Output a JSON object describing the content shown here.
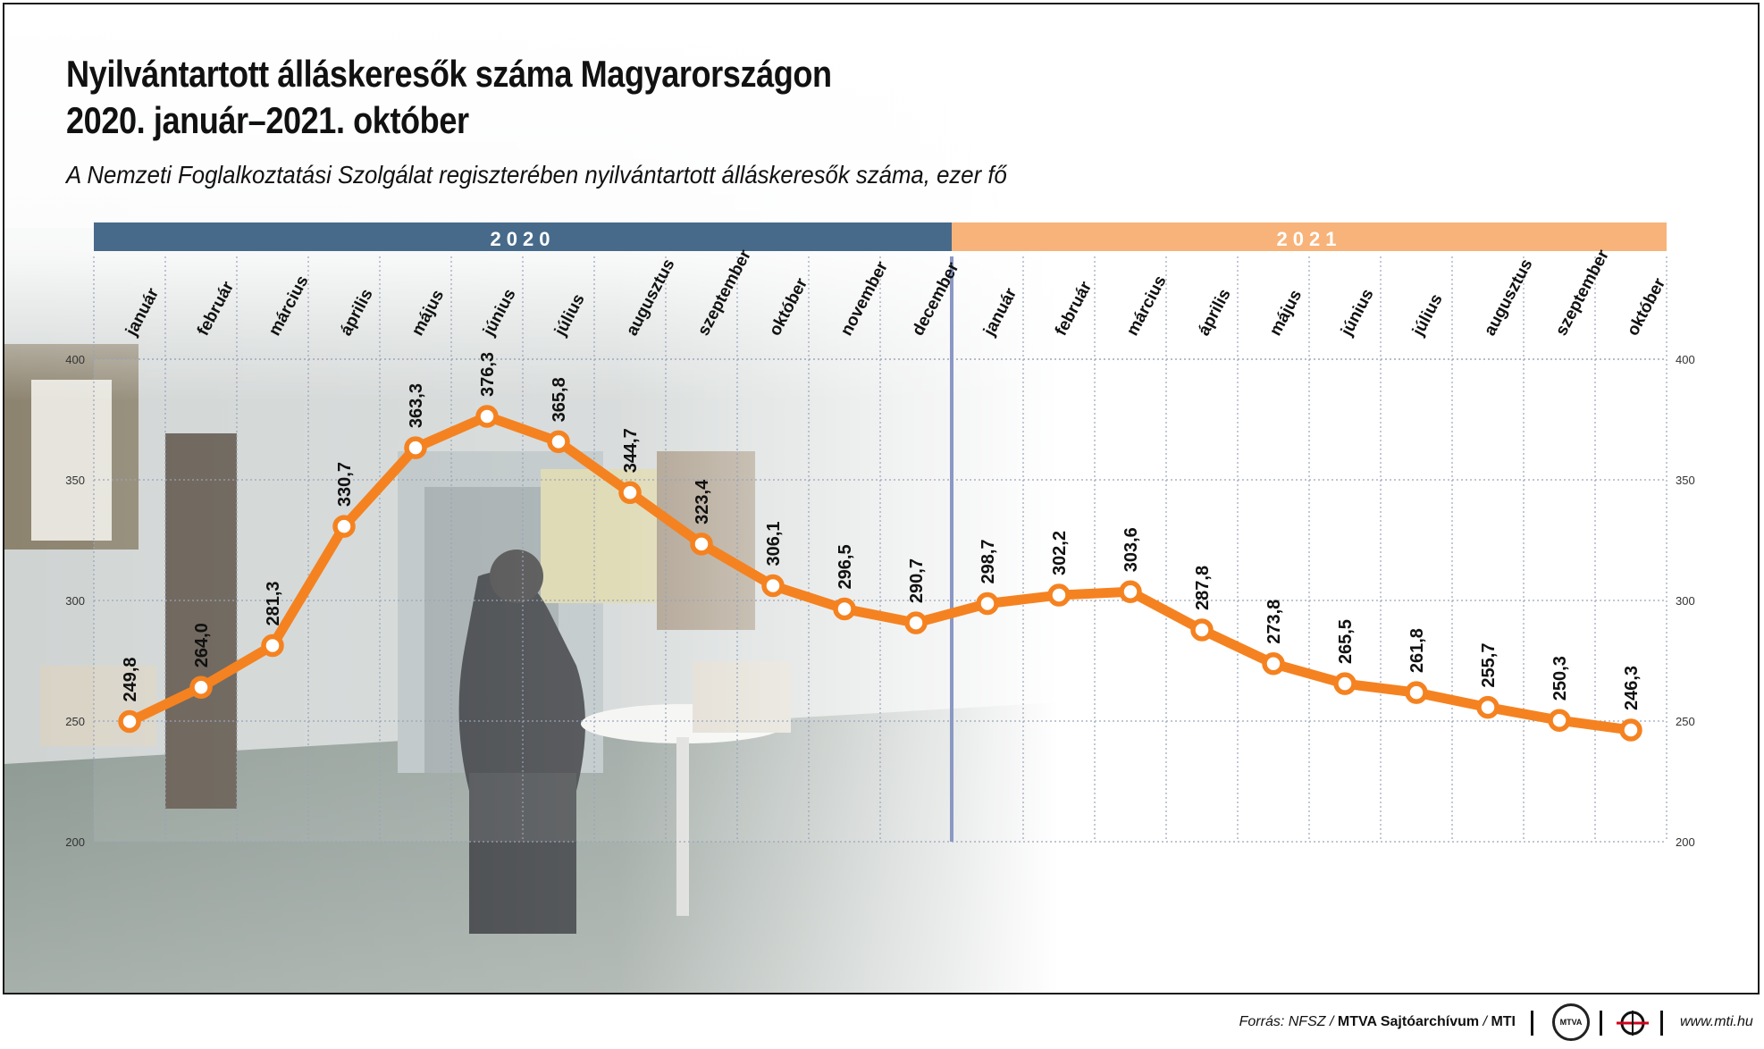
{
  "title": {
    "line1": "Nyilvántartott álláskeresők száma Magyarországon",
    "line2": "2020. január–2021. október"
  },
  "subtitle": "A Nemzeti Foglalkoztatási Szolgálat regiszterében nyilvántartott álláskeresők száma, ezer fő",
  "colors": {
    "year2020": "#476a8a",
    "year2021": "#f7b379",
    "line": "#f58220",
    "divider": "#8b98c4"
  },
  "chart_data": {
    "type": "line",
    "year_groups": [
      {
        "label": "2020",
        "months": 12
      },
      {
        "label": "2021",
        "months": 10
      }
    ],
    "categories": [
      "január",
      "február",
      "március",
      "április",
      "május",
      "június",
      "július",
      "augusztus",
      "szeptember",
      "október",
      "november",
      "december",
      "január",
      "február",
      "március",
      "április",
      "május",
      "június",
      "július",
      "augusztus",
      "szeptember",
      "október"
    ],
    "values": [
      249.8,
      264.0,
      281.3,
      330.7,
      363.3,
      376.3,
      365.8,
      344.7,
      323.4,
      306.1,
      296.5,
      290.7,
      298.7,
      302.2,
      303.6,
      287.8,
      273.8,
      265.5,
      261.8,
      255.7,
      250.3,
      246.3
    ],
    "value_labels": [
      "249,8",
      "264,0",
      "281,3",
      "330,7",
      "363,3",
      "376,3",
      "365,8",
      "344,7",
      "323,4",
      "306,1",
      "296,5",
      "290,7",
      "298,7",
      "302,2",
      "303,6",
      "287,8",
      "273,8",
      "265,5",
      "261,8",
      "255,7",
      "250,3",
      "246,3"
    ],
    "ylim": [
      200,
      400
    ],
    "yticks": [
      400,
      350,
      300,
      250,
      200
    ],
    "ytick_labels": [
      "400",
      "350",
      "300",
      "250",
      "200"
    ],
    "grid": true
  },
  "footer": {
    "source_prefix": "Forrás: NFSZ / ",
    "source_bold": "MTVA Sajtóarchívum",
    "source_sep": " / ",
    "source_mti": "MTI",
    "logo_mtva": "MTVA",
    "url": "www.mti.hu"
  }
}
